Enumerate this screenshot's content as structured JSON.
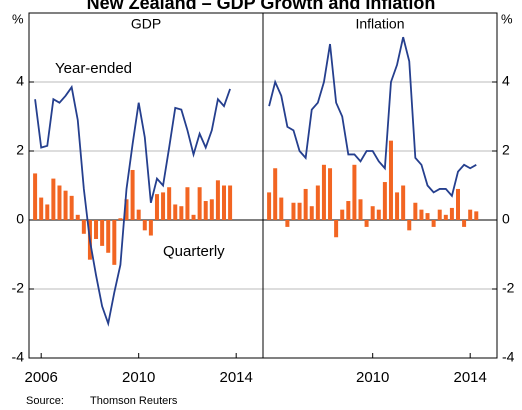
{
  "title": "New Zealand – GDP Growth and Inflation",
  "source_label": "Source:",
  "source": "Thomson Reuters",
  "chart_data": [
    {
      "type": "bar-line",
      "title": "GDP",
      "ylabel": "%",
      "xlim": [
        2005.5,
        2015.1
      ],
      "xticks": [
        2006,
        2010,
        2014
      ],
      "ylim": [
        -4,
        6
      ],
      "yticks": [
        -4,
        -2,
        0,
        2,
        4
      ],
      "grid": true,
      "ytick_side": "left",
      "x": [
        2005.75,
        2006,
        2006.25,
        2006.5,
        2006.75,
        2007,
        2007.25,
        2007.5,
        2007.75,
        2008,
        2008.25,
        2008.5,
        2008.75,
        2009,
        2009.25,
        2009.5,
        2009.75,
        2010,
        2010.25,
        2010.5,
        2010.75,
        2011,
        2011.25,
        2011.5,
        2011.75,
        2012,
        2012.25,
        2012.5,
        2012.75,
        2013,
        2013.25,
        2013.5,
        2013.75
      ],
      "series": [
        {
          "name": "Year-ended",
          "kind": "line",
          "color": "#253f8e",
          "values": [
            3.5,
            2.1,
            2.15,
            3.5,
            3.4,
            3.6,
            3.85,
            2.9,
            0.9,
            -0.6,
            -1.6,
            -2.5,
            -3.0,
            -2.1,
            -1.3,
            0.9,
            2.2,
            3.4,
            2.4,
            0.5,
            1.2,
            1.0,
            2.1,
            3.25,
            3.2,
            2.6,
            1.9,
            2.5,
            2.1,
            2.6,
            3.5,
            3.3,
            3.8
          ]
        },
        {
          "name": "Quarterly",
          "kind": "bar",
          "color": "#f26522",
          "values": [
            1.35,
            0.65,
            0.45,
            1.2,
            1.0,
            0.85,
            0.7,
            0.15,
            -0.4,
            -1.15,
            -0.55,
            -0.75,
            -0.95,
            -1.3,
            0.05,
            0.6,
            1.45,
            0.3,
            -0.3,
            -0.45,
            0.75,
            0.8,
            0.95,
            0.45,
            0.4,
            0.95,
            0.15,
            0.95,
            0.55,
            0.6,
            1.15,
            1.0,
            1.0
          ]
        }
      ]
    },
    {
      "type": "bar-line",
      "title": "Inflation",
      "ylabel": "%",
      "xlim": [
        2005.5,
        2015.1
      ],
      "xticks": [
        2010,
        2014
      ],
      "ylim": [
        -4,
        6
      ],
      "yticks": [
        -4,
        -2,
        0,
        2,
        4
      ],
      "grid": true,
      "ytick_side": "right",
      "x": [
        2005.75,
        2006,
        2006.25,
        2006.5,
        2006.75,
        2007,
        2007.25,
        2007.5,
        2007.75,
        2008,
        2008.25,
        2008.5,
        2008.75,
        2009,
        2009.25,
        2009.5,
        2009.75,
        2010,
        2010.25,
        2010.5,
        2010.75,
        2011,
        2011.25,
        2011.5,
        2011.75,
        2012,
        2012.25,
        2012.5,
        2012.75,
        2013,
        2013.25,
        2013.5,
        2013.75,
        2014,
        2014.25
      ],
      "series": [
        {
          "kind": "line",
          "color": "#253f8e",
          "values": [
            3.3,
            4.0,
            3.6,
            2.7,
            2.6,
            2.0,
            1.8,
            3.2,
            3.4,
            4.0,
            5.1,
            3.4,
            3.0,
            1.9,
            1.9,
            1.7,
            2.0,
            2.0,
            1.7,
            1.5,
            4.0,
            4.5,
            5.3,
            4.6,
            1.8,
            1.6,
            1.0,
            0.8,
            0.9,
            0.9,
            0.7,
            1.4,
            1.6,
            1.5,
            1.6
          ]
        },
        {
          "kind": "bar",
          "color": "#f26522",
          "values": [
            0.8,
            1.5,
            0.65,
            -0.2,
            0.5,
            0.5,
            0.9,
            0.4,
            1.0,
            1.6,
            1.5,
            -0.5,
            0.3,
            0.55,
            1.6,
            0.6,
            -0.2,
            0.4,
            0.3,
            1.1,
            2.3,
            0.8,
            1.0,
            -0.3,
            0.5,
            0.3,
            0.2,
            -0.2,
            0.3,
            0.15,
            0.35,
            0.9,
            -0.2,
            0.3,
            0.25
          ]
        }
      ]
    }
  ]
}
